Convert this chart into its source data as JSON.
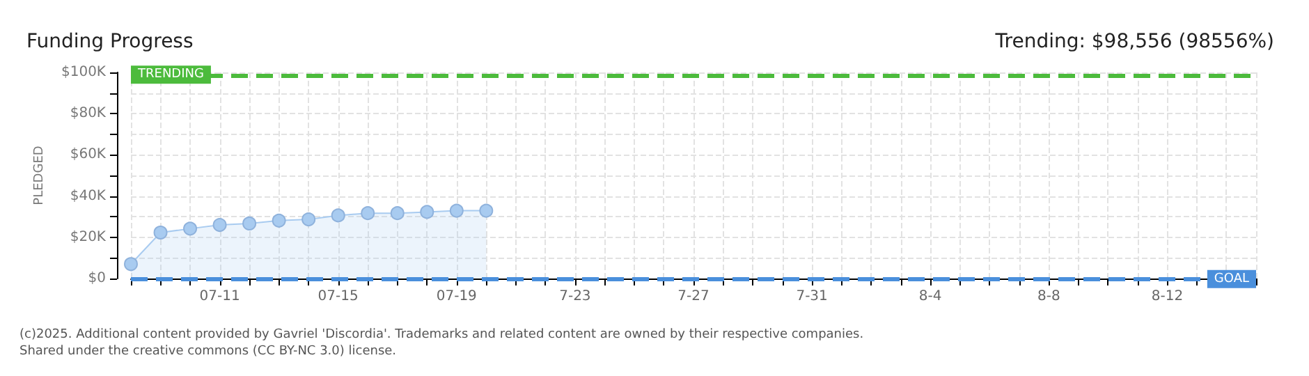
{
  "chart_data": {
    "type": "area",
    "title": "Funding Progress",
    "subtitle": "Trending: $98,556 (98556%)",
    "ylabel": "PLEDGED",
    "categories": [
      null,
      null,
      null,
      "07-11",
      null,
      null,
      null,
      "07-15",
      null,
      null,
      null,
      "07-19",
      null,
      null,
      null,
      "7-23",
      null,
      null,
      null,
      "7-27",
      null,
      null,
      null,
      "7-31",
      null,
      null,
      null,
      "8-4",
      null,
      null,
      null,
      "8-8",
      null,
      null,
      null,
      "8-12",
      null,
      null,
      null
    ],
    "series": [
      {
        "color": "#a8cbf0",
        "values": [
          7000,
          22300,
          24200,
          26000,
          26700,
          28100,
          28700,
          30600,
          31700,
          31700,
          32300,
          32900,
          32900,
          null,
          null,
          null,
          null,
          null,
          null,
          null,
          null,
          null,
          null,
          null,
          null,
          null,
          null,
          null,
          null,
          null,
          null,
          null,
          null,
          null,
          null,
          null,
          null,
          null,
          null
        ]
      }
    ],
    "ylim": [
      0,
      100000
    ],
    "yticks": [
      {
        "value": 0,
        "label": "$0"
      },
      {
        "value": 10000,
        "label": null
      },
      {
        "value": 20000,
        "label": "$20K"
      },
      {
        "value": 30000,
        "label": null
      },
      {
        "value": 40000,
        "label": "$40K"
      },
      {
        "value": 50000,
        "label": null
      },
      {
        "value": 60000,
        "label": "$60K"
      },
      {
        "value": 70000,
        "label": null
      },
      {
        "value": 80000,
        "label": "$80K"
      },
      {
        "value": 90000,
        "label": null
      },
      {
        "value": 100000,
        "label": "$100K"
      }
    ],
    "grid": true,
    "marker": "circle",
    "line_style": "solid",
    "ref_lines": [
      {
        "axis": "y",
        "value": 98556,
        "label": "TRENDING",
        "color": "#4cbb3c",
        "line_style": "dashed"
      },
      {
        "axis": "y",
        "value": 100,
        "label": "GOAL",
        "color": "#4a8fdc",
        "line_style": "dashed"
      }
    ],
    "annotations": [
      "(c)2025. Additional content provided by Gavriel 'Discordia'. Trademarks and related content are owned by their respective companies.",
      "Shared under the creative commons (CC BY-NC 3.0) license."
    ]
  }
}
